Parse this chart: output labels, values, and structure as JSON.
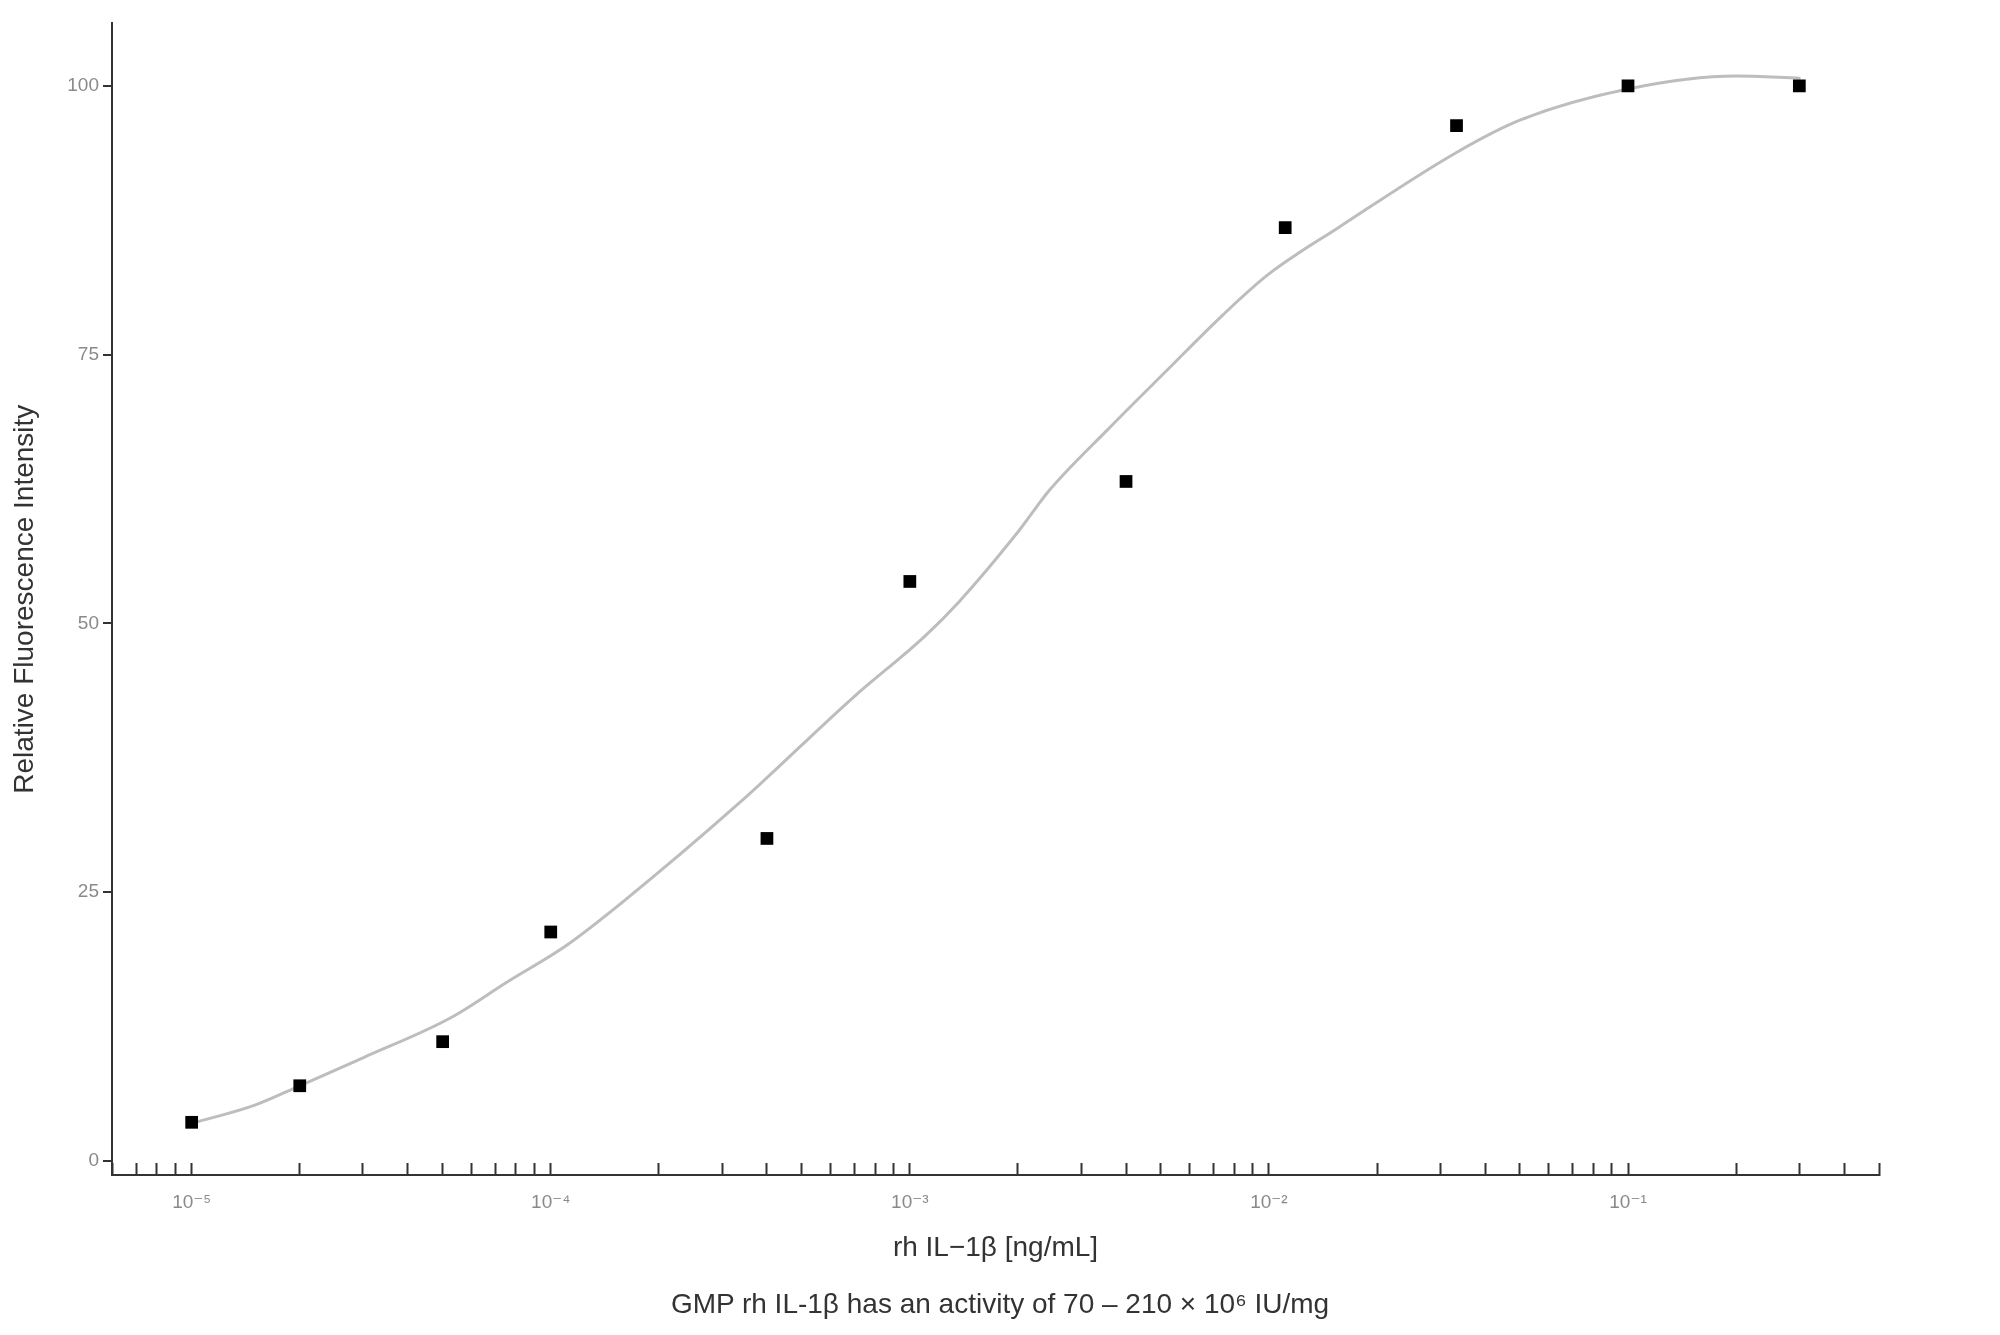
{
  "chart_data": {
    "type": "scatter",
    "xlabel": "rh IL−1β [ng/mL]",
    "ylabel": "Relative Fluorescence Intensity",
    "annotations": [
      "GMP rh IL-1β has an activity of 70 – 210 × 10⁶ IU/mg"
    ],
    "log": "x",
    "grid": false,
    "legend": false,
    "xlim": [
      6e-06,
      0.5
    ],
    "ylim": [
      -1.3,
      105.8
    ],
    "xticks": [
      {
        "value": 6e-06,
        "label": null
      },
      {
        "value": 7e-06,
        "label": null
      },
      {
        "value": 8e-06,
        "label": null
      },
      {
        "value": 9e-06,
        "label": null
      },
      {
        "value": 1e-05,
        "label": "10⁻⁵"
      },
      {
        "value": 2e-05,
        "label": null
      },
      {
        "value": 3e-05,
        "label": null
      },
      {
        "value": 4e-05,
        "label": null
      },
      {
        "value": 5e-05,
        "label": null
      },
      {
        "value": 6e-05,
        "label": null
      },
      {
        "value": 7e-05,
        "label": null
      },
      {
        "value": 8e-05,
        "label": null
      },
      {
        "value": 9e-05,
        "label": null
      },
      {
        "value": 0.0001,
        "label": "10⁻⁴"
      },
      {
        "value": 0.0002,
        "label": null
      },
      {
        "value": 0.0003,
        "label": null
      },
      {
        "value": 0.0004,
        "label": null
      },
      {
        "value": 0.0005,
        "label": null
      },
      {
        "value": 0.0006,
        "label": null
      },
      {
        "value": 0.0007,
        "label": null
      },
      {
        "value": 0.0008,
        "label": null
      },
      {
        "value": 0.0009,
        "label": null
      },
      {
        "value": 0.001,
        "label": "10⁻³"
      },
      {
        "value": 0.002,
        "label": null
      },
      {
        "value": 0.003,
        "label": null
      },
      {
        "value": 0.004,
        "label": null
      },
      {
        "value": 0.005,
        "label": null
      },
      {
        "value": 0.006,
        "label": null
      },
      {
        "value": 0.007,
        "label": null
      },
      {
        "value": 0.008,
        "label": null
      },
      {
        "value": 0.009,
        "label": null
      },
      {
        "value": 0.01,
        "label": "10⁻²"
      },
      {
        "value": 0.02,
        "label": null
      },
      {
        "value": 0.03,
        "label": null
      },
      {
        "value": 0.04,
        "label": null
      },
      {
        "value": 0.05,
        "label": null
      },
      {
        "value": 0.06,
        "label": null
      },
      {
        "value": 0.07,
        "label": null
      },
      {
        "value": 0.08,
        "label": null
      },
      {
        "value": 0.09,
        "label": null
      },
      {
        "value": 0.1,
        "label": "10⁻¹"
      },
      {
        "value": 0.2,
        "label": null
      },
      {
        "value": 0.3,
        "label": null
      },
      {
        "value": 0.4,
        "label": null
      },
      {
        "value": 0.5,
        "label": null
      }
    ],
    "yticks": [
      0,
      25,
      50,
      75,
      100
    ],
    "series": [
      {
        "color": "#000000",
        "marker": "square",
        "x": [
          1e-05,
          2e-05,
          5e-05,
          0.0001,
          0.0004,
          0.001,
          0.004,
          0.0111,
          0.0333,
          0.1,
          0.3
        ],
        "values": [
          3.6,
          7.0,
          11.1,
          21.3,
          30.0,
          53.9,
          63.2,
          86.8,
          96.3,
          100.0,
          100.0
        ]
      },
      {
        "type": "line",
        "color": "#bdbdbd",
        "marker": "none",
        "line_style": "solid",
        "x": [
          1e-05,
          1.5e-05,
          2e-05,
          3e-05,
          5.25e-05,
          7.6e-05,
          0.00011,
          0.00016,
          0.000335,
          0.0007,
          0.0011,
          0.00137,
          0.002,
          0.00245,
          0.00355,
          0.00515,
          0.00745,
          0.01,
          0.0156,
          0.0333,
          0.05,
          0.1,
          0.2,
          0.3
        ],
        "values": [
          3.5,
          5.2,
          7.0,
          9.6,
          13.3,
          16.7,
          20.0,
          24.2,
          33.3,
          43.2,
          48.8,
          52.0,
          58.5,
          62.4,
          68.0,
          73.4,
          78.7,
          82.5,
          86.8,
          93.8,
          96.8,
          99.7,
          100.9,
          100.7
        ]
      }
    ]
  }
}
